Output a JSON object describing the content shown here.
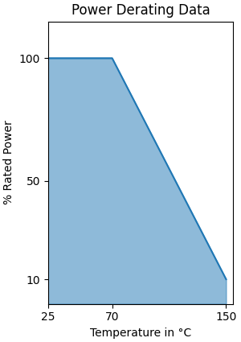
{
  "chart_data": {
    "type": "area",
    "title": "Power Derating Data",
    "x": [
      25,
      70,
      150
    ],
    "values": [
      100,
      100,
      10
    ],
    "xlabel": "Temperature in °C",
    "ylabel": "% Rated Power",
    "xlim": [
      25,
      155
    ],
    "ylim": [
      0,
      115
    ],
    "xticks": [
      25,
      70,
      150
    ],
    "yticks": [
      10,
      50,
      100
    ],
    "grid": false
  }
}
